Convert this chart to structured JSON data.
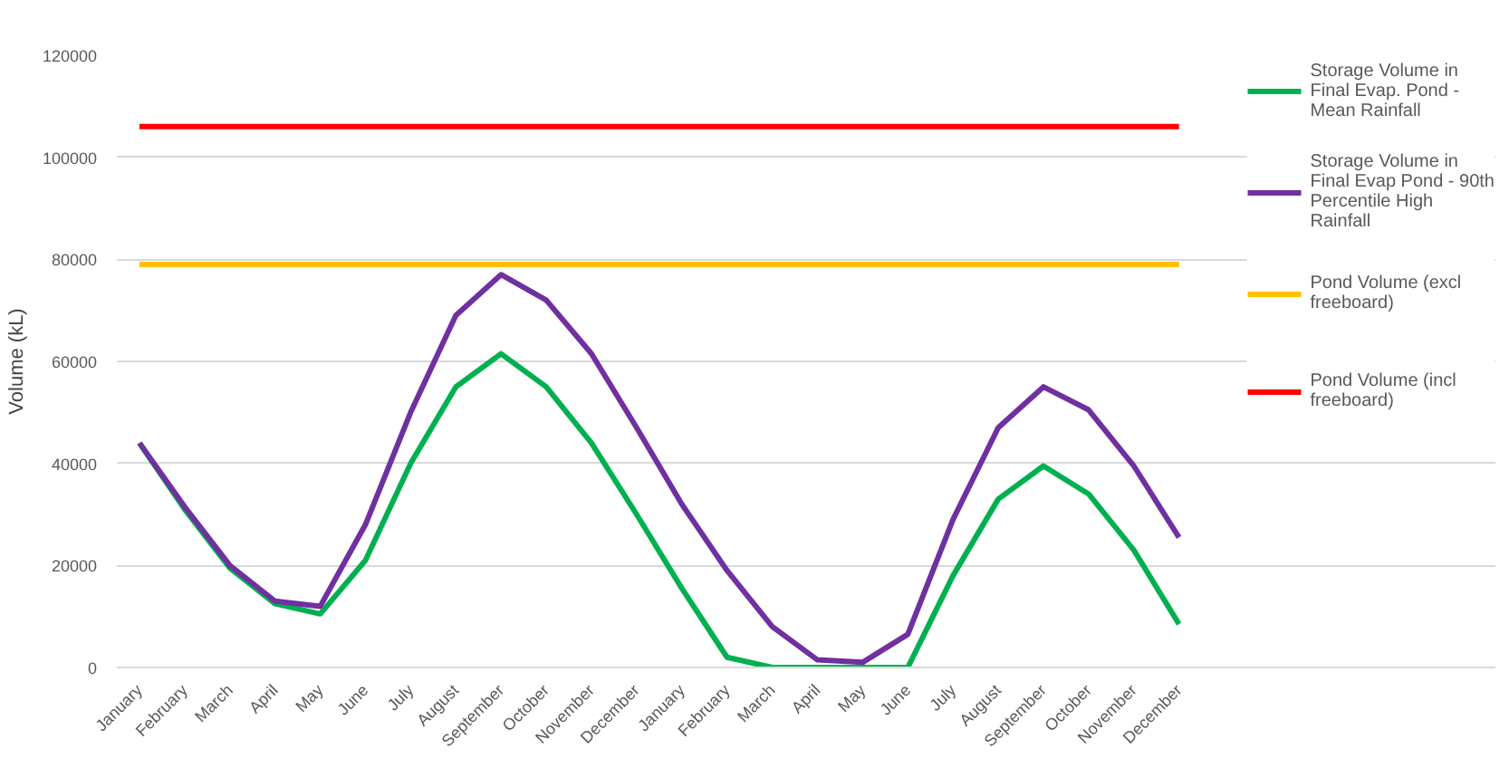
{
  "chart_data": {
    "type": "line",
    "ylabel": "Volume (kL)",
    "categories": [
      "January",
      "February",
      "March",
      "April",
      "May",
      "June",
      "July",
      "August",
      "September",
      "October",
      "November",
      "December",
      "January",
      "February",
      "March",
      "April",
      "May",
      "June",
      "July",
      "August",
      "September",
      "October",
      "November",
      "December"
    ],
    "series": [
      {
        "name": "Storage Volume in Final Evap. Pond - Mean Rainfall",
        "color": "#00b050",
        "values": [
          44000,
          31000,
          19500,
          12500,
          10500,
          21000,
          40000,
          55000,
          61500,
          55000,
          44000,
          30000,
          15500,
          2000,
          0,
          0,
          0,
          0,
          18000,
          33000,
          39500,
          34000,
          23000,
          8500
        ]
      },
      {
        "name": "Storage Volume in Final Evap Pond - 90th Percentile High Rainfall",
        "color": "#7030a0",
        "values": [
          44000,
          31500,
          20000,
          13000,
          12000,
          28000,
          50000,
          69000,
          77000,
          72000,
          61500,
          47000,
          32000,
          19000,
          8000,
          1500,
          1000,
          6500,
          29000,
          47000,
          55000,
          50500,
          39500,
          25500
        ]
      },
      {
        "name": "Pond Volume (excl freeboard)",
        "color": "#ffc000",
        "values": [
          79000,
          79000,
          79000,
          79000,
          79000,
          79000,
          79000,
          79000,
          79000,
          79000,
          79000,
          79000,
          79000,
          79000,
          79000,
          79000,
          79000,
          79000,
          79000,
          79000,
          79000,
          79000,
          79000,
          79000
        ]
      },
      {
        "name": "Pond Volume (incl freeboard)",
        "color": "#ff0000",
        "values": [
          106000,
          106000,
          106000,
          106000,
          106000,
          106000,
          106000,
          106000,
          106000,
          106000,
          106000,
          106000,
          106000,
          106000,
          106000,
          106000,
          106000,
          106000,
          106000,
          106000,
          106000,
          106000,
          106000,
          106000
        ]
      }
    ],
    "ylim": [
      0,
      120000
    ],
    "yticks": [
      0,
      20000,
      40000,
      60000,
      80000,
      100000,
      120000
    ],
    "grid": "y",
    "legend": "right",
    "marker": "none",
    "line_style": "solid"
  }
}
